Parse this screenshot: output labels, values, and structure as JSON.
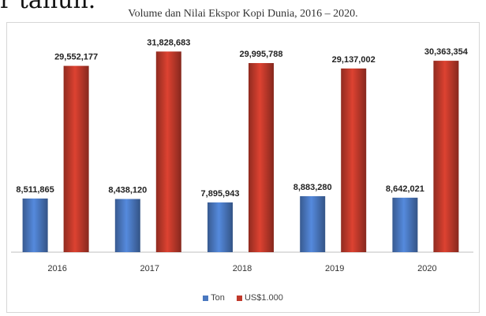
{
  "page_text": "r tahun.",
  "chart_data": {
    "type": "bar",
    "title": "Volume dan Nilai Ekspor Kopi Dunia, 2016 – 2020.",
    "categories": [
      "2016",
      "2017",
      "2018",
      "2019",
      "2020"
    ],
    "series": [
      {
        "name": "Ton",
        "color": "#4a78c0",
        "values": [
          8511865,
          8438120,
          7895943,
          8883280,
          8642021
        ],
        "labels": [
          "8,511,865",
          "8,438,120",
          "7,895,943",
          "8,883,280",
          "8,642,021"
        ]
      },
      {
        "name": "US$1.000",
        "color": "#c0392b",
        "values": [
          29552177,
          31828683,
          29995788,
          29137002,
          30363354
        ],
        "labels": [
          "29,552,177",
          "31,828,683",
          "29,995,788",
          "29,137,002",
          "30,363,354"
        ]
      }
    ],
    "ylim": [
      0,
      35000000
    ],
    "grid": false,
    "legend": "bottom"
  }
}
